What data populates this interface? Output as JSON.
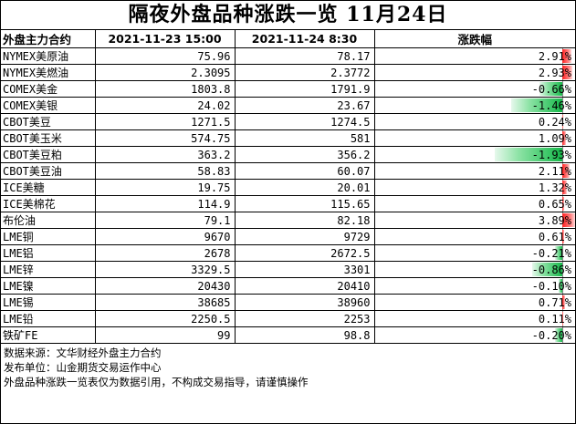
{
  "title": "隔夜外盘品种涨跌一览  11月24日",
  "headers": {
    "contract": "外盘主力合约",
    "prev": "2021-11-23 15:00",
    "curr": "2021-11-24 8:30",
    "change": "涨跌幅"
  },
  "rows": [
    {
      "name": "NYMEX美原油",
      "prev": "75.96",
      "curr": "78.17",
      "pct": "2.91%",
      "value": 2.91
    },
    {
      "name": "NYMEX美燃油",
      "prev": "2.3095",
      "curr": "2.3772",
      "pct": "2.93%",
      "value": 2.93
    },
    {
      "name": "COMEX美金",
      "prev": "1803.8",
      "curr": "1791.9",
      "pct": "-0.66%",
      "value": -0.66
    },
    {
      "name": "COMEX美银",
      "prev": "24.02",
      "curr": "23.67",
      "pct": "-1.46%",
      "value": -1.46
    },
    {
      "name": "CBOT美豆",
      "prev": "1271.5",
      "curr": "1274.5",
      "pct": "0.24%",
      "value": 0.24
    },
    {
      "name": "CBOT美玉米",
      "prev": "574.75",
      "curr": "581",
      "pct": "1.09%",
      "value": 1.09
    },
    {
      "name": "CBOT美豆粕",
      "prev": "363.2",
      "curr": "356.2",
      "pct": "-1.93%",
      "value": -1.93
    },
    {
      "name": "CBOT美豆油",
      "prev": "58.83",
      "curr": "60.07",
      "pct": "2.11%",
      "value": 2.11
    },
    {
      "name": "ICE美糖",
      "prev": "19.75",
      "curr": "20.01",
      "pct": "1.32%",
      "value": 1.32
    },
    {
      "name": "ICE美棉花",
      "prev": "114.9",
      "curr": "115.65",
      "pct": "0.65%",
      "value": 0.65
    },
    {
      "name": "布伦油",
      "prev": "79.1",
      "curr": "82.18",
      "pct": "3.89%",
      "value": 3.89
    },
    {
      "name": "LME铜",
      "prev": "9670",
      "curr": "9729",
      "pct": "0.61%",
      "value": 0.61
    },
    {
      "name": "LME铝",
      "prev": "2678",
      "curr": "2672.5",
      "pct": "-0.21%",
      "value": -0.21
    },
    {
      "name": "LME锌",
      "prev": "3329.5",
      "curr": "3301",
      "pct": "-0.86%",
      "value": -0.86
    },
    {
      "name": "LME镍",
      "prev": "20430",
      "curr": "20410",
      "pct": "-0.10%",
      "value": -0.1
    },
    {
      "name": "LME锡",
      "prev": "38685",
      "curr": "38960",
      "pct": "0.71%",
      "value": 0.71
    },
    {
      "name": "LME铅",
      "prev": "2250.5",
      "curr": "2253",
      "pct": "0.11%",
      "value": 0.11
    },
    {
      "name": "铁矿FE",
      "prev": "99",
      "curr": "98.8",
      "pct": "-0.20%",
      "value": -0.2
    }
  ],
  "bar_scale_max": 3.89,
  "colors": {
    "up": "#ff2020",
    "down": "#16b94a"
  },
  "footer": [
    "数据来源：文华财经外盘主力合约",
    "发布单位：山金期货交易运作中心",
    "外盘品种涨跌一览表仅为数据引用，不构成交易指导，请谨慎操作"
  ]
}
